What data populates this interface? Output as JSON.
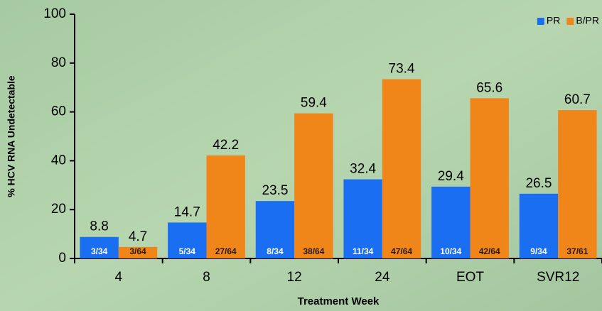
{
  "chart_data": {
    "type": "bar",
    "y_label": "% HCV RNA Undetectable",
    "x_label": "Treatment Week",
    "categories": [
      "4",
      "8",
      "12",
      "24",
      "EOT",
      "SVR12"
    ],
    "series": [
      {
        "name": "PR",
        "color": "#1a6ef2",
        "count_color": "#ffffff",
        "values": [
          8.8,
          14.7,
          23.5,
          32.4,
          29.4,
          26.5
        ],
        "counts": [
          "3/34",
          "5/34",
          "8/34",
          "11/34",
          "10/34",
          "9/34"
        ]
      },
      {
        "name": "B/PR",
        "color": "#f0861a",
        "count_color": "#2a1800",
        "values": [
          4.7,
          42.2,
          59.4,
          73.4,
          65.6,
          60.7
        ],
        "counts": [
          "3/64",
          "27/64",
          "38/64",
          "47/64",
          "42/64",
          "37/61"
        ]
      }
    ],
    "ylim": [
      0,
      100
    ],
    "yticks": [
      0,
      20,
      40,
      60,
      80,
      100
    ],
    "legend": "top-right"
  }
}
